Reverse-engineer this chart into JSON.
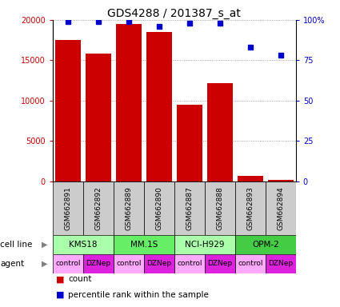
{
  "title": "GDS4288 / 201387_s_at",
  "samples": [
    "GSM662891",
    "GSM662892",
    "GSM662889",
    "GSM662890",
    "GSM662887",
    "GSM662888",
    "GSM662893",
    "GSM662894"
  ],
  "bar_values": [
    17500,
    15800,
    19500,
    18500,
    9500,
    12200,
    700,
    200
  ],
  "percentile_values": [
    99,
    99,
    99,
    96,
    98,
    98,
    83,
    78
  ],
  "bar_color": "#cc0000",
  "dot_color": "#0000cc",
  "ylim_left": [
    0,
    20000
  ],
  "ylim_right": [
    0,
    100
  ],
  "yticks_left": [
    0,
    5000,
    10000,
    15000,
    20000
  ],
  "yticks_right": [
    0,
    25,
    50,
    75,
    100
  ],
  "cell_lines": [
    {
      "label": "KMS18",
      "start": 0,
      "end": 2,
      "color": "#aaffaa"
    },
    {
      "label": "MM.1S",
      "start": 2,
      "end": 4,
      "color": "#66ee66"
    },
    {
      "label": "NCI-H929",
      "start": 4,
      "end": 6,
      "color": "#aaffaa"
    },
    {
      "label": "OPM-2",
      "start": 6,
      "end": 8,
      "color": "#44cc44"
    }
  ],
  "agents": [
    "control",
    "DZNep",
    "control",
    "DZNep",
    "control",
    "DZNep",
    "control",
    "DZNep"
  ],
  "agent_colors": [
    "#ffaaff",
    "#dd22dd",
    "#ffaaff",
    "#dd22dd",
    "#ffaaff",
    "#dd22dd",
    "#ffaaff",
    "#dd22dd"
  ],
  "tick_label_color_left": "#cc0000",
  "tick_label_color_right": "#0000cc",
  "bg_color": "#ffffff",
  "grid_color": "#888888",
  "sample_bg_color": "#cccccc"
}
